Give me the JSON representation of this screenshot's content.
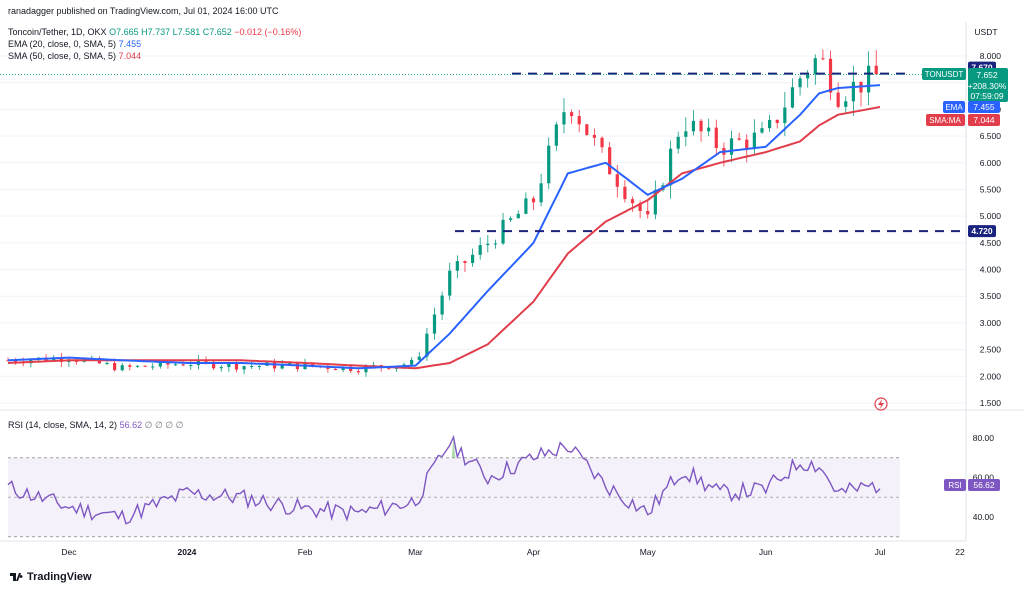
{
  "header": {
    "published": "ranadagger published on TradingView.com, Jul 01, 2024 16:00 UTC",
    "symbol": "Toncoin/Tether, 1D, OKX",
    "ohlc_o": "O7.665",
    "ohlc_h": "H7.737",
    "ohlc_l": "L7.581",
    "ohlc_c": "C7.652",
    "change": "−0.012 (−0.16%)",
    "ema_label": "EMA (20, close, 0, SMA, 5)",
    "ema_value": "7.455",
    "sma_label": "SMA (50, close, 0, SMA, 5)",
    "sma_value": "7.044",
    "rsi_label": "RSI (14, close, SMA, 14, 2)",
    "rsi_value": "56.62",
    "rsi_extra": "∅ ∅ ∅ ∅"
  },
  "axis": {
    "currency": "USDT",
    "price_ticks": [
      "8.000",
      "7.500",
      "7.000",
      "6.500",
      "6.000",
      "5.500",
      "5.000",
      "4.500",
      "4.000",
      "3.500",
      "3.000",
      "2.500",
      "2.000",
      "1.500"
    ],
    "rsi_ticks": [
      "80.00",
      "60.00",
      "40.00"
    ],
    "date_labels": [
      "Dec",
      "2024",
      "Feb",
      "Mar",
      "Apr",
      "May",
      "Jun",
      "Jul",
      "22"
    ]
  },
  "labels": {
    "resistance": "7.670",
    "support": "4.720",
    "ticker": "TONUSDT",
    "ticker_price": "7.652",
    "ticker_change": "+208.30%",
    "ticker_time": "07:59:09",
    "ema_tag": "EMA",
    "ema_tag_value": "7.455",
    "sma_tag": "SMA:MA",
    "sma_tag_value": "7.044",
    "rsi_tag": "RSI",
    "rsi_tag_value": "56.62"
  },
  "brand": "TradingView",
  "colors": {
    "up": "#089981",
    "down": "#f23645",
    "ema": "#2962ff",
    "sma": "#e13d4b",
    "rsi": "#7e57c2",
    "level": "#1a237e",
    "ticker": "#089981"
  },
  "chart_data": [
    {
      "type": "candlestick",
      "title": "Toncoin/Tether, 1D, OKX",
      "x": [
        "2023-11-15",
        "2023-12-01",
        "2023-12-15",
        "2024-01-01",
        "2024-01-15",
        "2024-02-01",
        "2024-02-15",
        "2024-03-01",
        "2024-03-10",
        "2024-03-20",
        "2024-04-01",
        "2024-04-10",
        "2024-04-20",
        "2024-05-01",
        "2024-05-10",
        "2024-05-20",
        "2024-06-01",
        "2024-06-10",
        "2024-06-15",
        "2024-06-20",
        "2024-07-01"
      ],
      "close": [
        2.3,
        2.35,
        2.15,
        2.25,
        2.2,
        2.2,
        2.15,
        2.25,
        3.9,
        4.5,
        5.3,
        7.2,
        6.0,
        4.9,
        6.8,
        6.3,
        6.5,
        7.6,
        8.0,
        7.3,
        7.652
      ],
      "series": [
        {
          "name": "EMA (20, close, 0, SMA, 5)",
          "values": [
            2.3,
            2.35,
            2.3,
            2.25,
            2.25,
            2.2,
            2.15,
            2.2,
            2.8,
            3.6,
            4.5,
            5.8,
            6.0,
            5.4,
            5.7,
            6.2,
            6.3,
            6.9,
            7.3,
            7.4,
            7.455
          ]
        },
        {
          "name": "SMA (50, close, 0, SMA, 5)",
          "values": [
            2.25,
            2.3,
            2.3,
            2.3,
            2.3,
            2.25,
            2.2,
            2.15,
            2.25,
            2.6,
            3.4,
            4.3,
            4.9,
            5.3,
            5.8,
            6.0,
            6.2,
            6.4,
            6.7,
            6.9,
            7.044
          ]
        }
      ],
      "levels": [
        7.67,
        4.72
      ],
      "ylim": [
        1.3,
        8.9
      ]
    },
    {
      "type": "line",
      "title": "RSI (14, close, SMA, 14, 2)",
      "x": [
        "2023-11-15",
        "2023-12-01",
        "2023-12-15",
        "2024-01-01",
        "2024-01-15",
        "2024-02-01",
        "2024-02-15",
        "2024-03-01",
        "2024-03-10",
        "2024-03-20",
        "2024-04-01",
        "2024-04-10",
        "2024-04-20",
        "2024-05-01",
        "2024-05-10",
        "2024-05-20",
        "2024-06-01",
        "2024-06-10",
        "2024-06-15",
        "2024-06-20",
        "2024-07-01"
      ],
      "series": [
        {
          "name": "RSI",
          "values": [
            55,
            45,
            40,
            52,
            50,
            44,
            42,
            48,
            78,
            60,
            70,
            76,
            56,
            42,
            64,
            52,
            54,
            68,
            66,
            52,
            56.62
          ]
        }
      ],
      "ylim": [
        28,
        92
      ],
      "bands": [
        70,
        30
      ]
    }
  ]
}
